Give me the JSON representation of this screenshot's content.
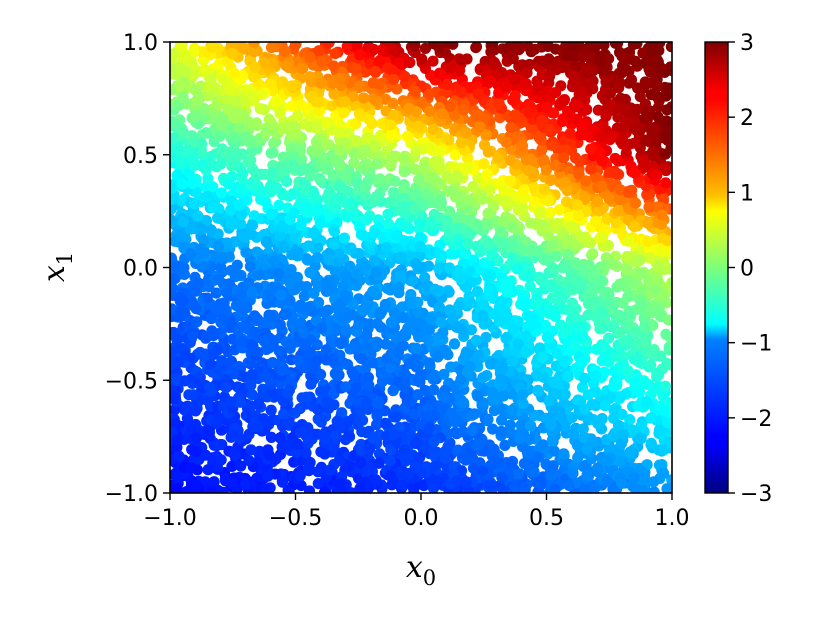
{
  "chart_data": {
    "type": "scatter",
    "title": "",
    "xlabel": "x",
    "xlabel_sub": "0",
    "ylabel": "x",
    "ylabel_sub": "1",
    "xlim": [
      -1.0,
      1.0
    ],
    "ylim": [
      -1.0,
      1.0
    ],
    "x_ticks": [
      -1.0,
      -0.5,
      0.0,
      0.5,
      1.0
    ],
    "x_tick_labels": [
      "−1.0",
      "−0.5",
      "0.0",
      "0.5",
      "1.0"
    ],
    "y_ticks": [
      -1.0,
      -0.5,
      0.0,
      0.5,
      1.0
    ],
    "y_tick_labels": [
      "−1.0",
      "−0.5",
      "0.0",
      "0.5",
      "1.0"
    ],
    "colorbar": {
      "colormap": "jet",
      "range": [
        -3,
        3
      ],
      "ticks": [
        -3,
        -2,
        -1,
        0,
        1,
        2,
        3
      ],
      "tick_labels": [
        "−3",
        "−2",
        "−1",
        "0",
        "1",
        "2",
        "3"
      ]
    },
    "color_model": {
      "description_in_data_units": "color value c at point (x0, x1)",
      "samples": [
        {
          "x0": -1.0,
          "x1": -1.0,
          "c": -2.2
        },
        {
          "x0": -1.0,
          "x1": 0.0,
          "c": -1.6
        },
        {
          "x0": -1.0,
          "x1": 0.5,
          "c": -0.6
        },
        {
          "x0": -1.0,
          "x1": 1.0,
          "c": 0.6
        },
        {
          "x0": 0.0,
          "x1": -1.0,
          "c": -2.0
        },
        {
          "x0": 0.0,
          "x1": 0.0,
          "c": -1.2
        },
        {
          "x0": 0.0,
          "x1": 0.5,
          "c": 0.4
        },
        {
          "x0": 0.0,
          "x1": 1.0,
          "c": 3.0
        },
        {
          "x0": 1.0,
          "x1": -1.0,
          "c": -1.4
        },
        {
          "x0": 1.0,
          "x1": 0.0,
          "c": 0.4
        },
        {
          "x0": 1.0,
          "x1": 0.5,
          "c": 3.0
        },
        {
          "x0": 1.0,
          "x1": 1.0,
          "c": 3.0
        }
      ],
      "clip": [
        -3,
        3
      ]
    },
    "grid": false,
    "legend": "none"
  }
}
